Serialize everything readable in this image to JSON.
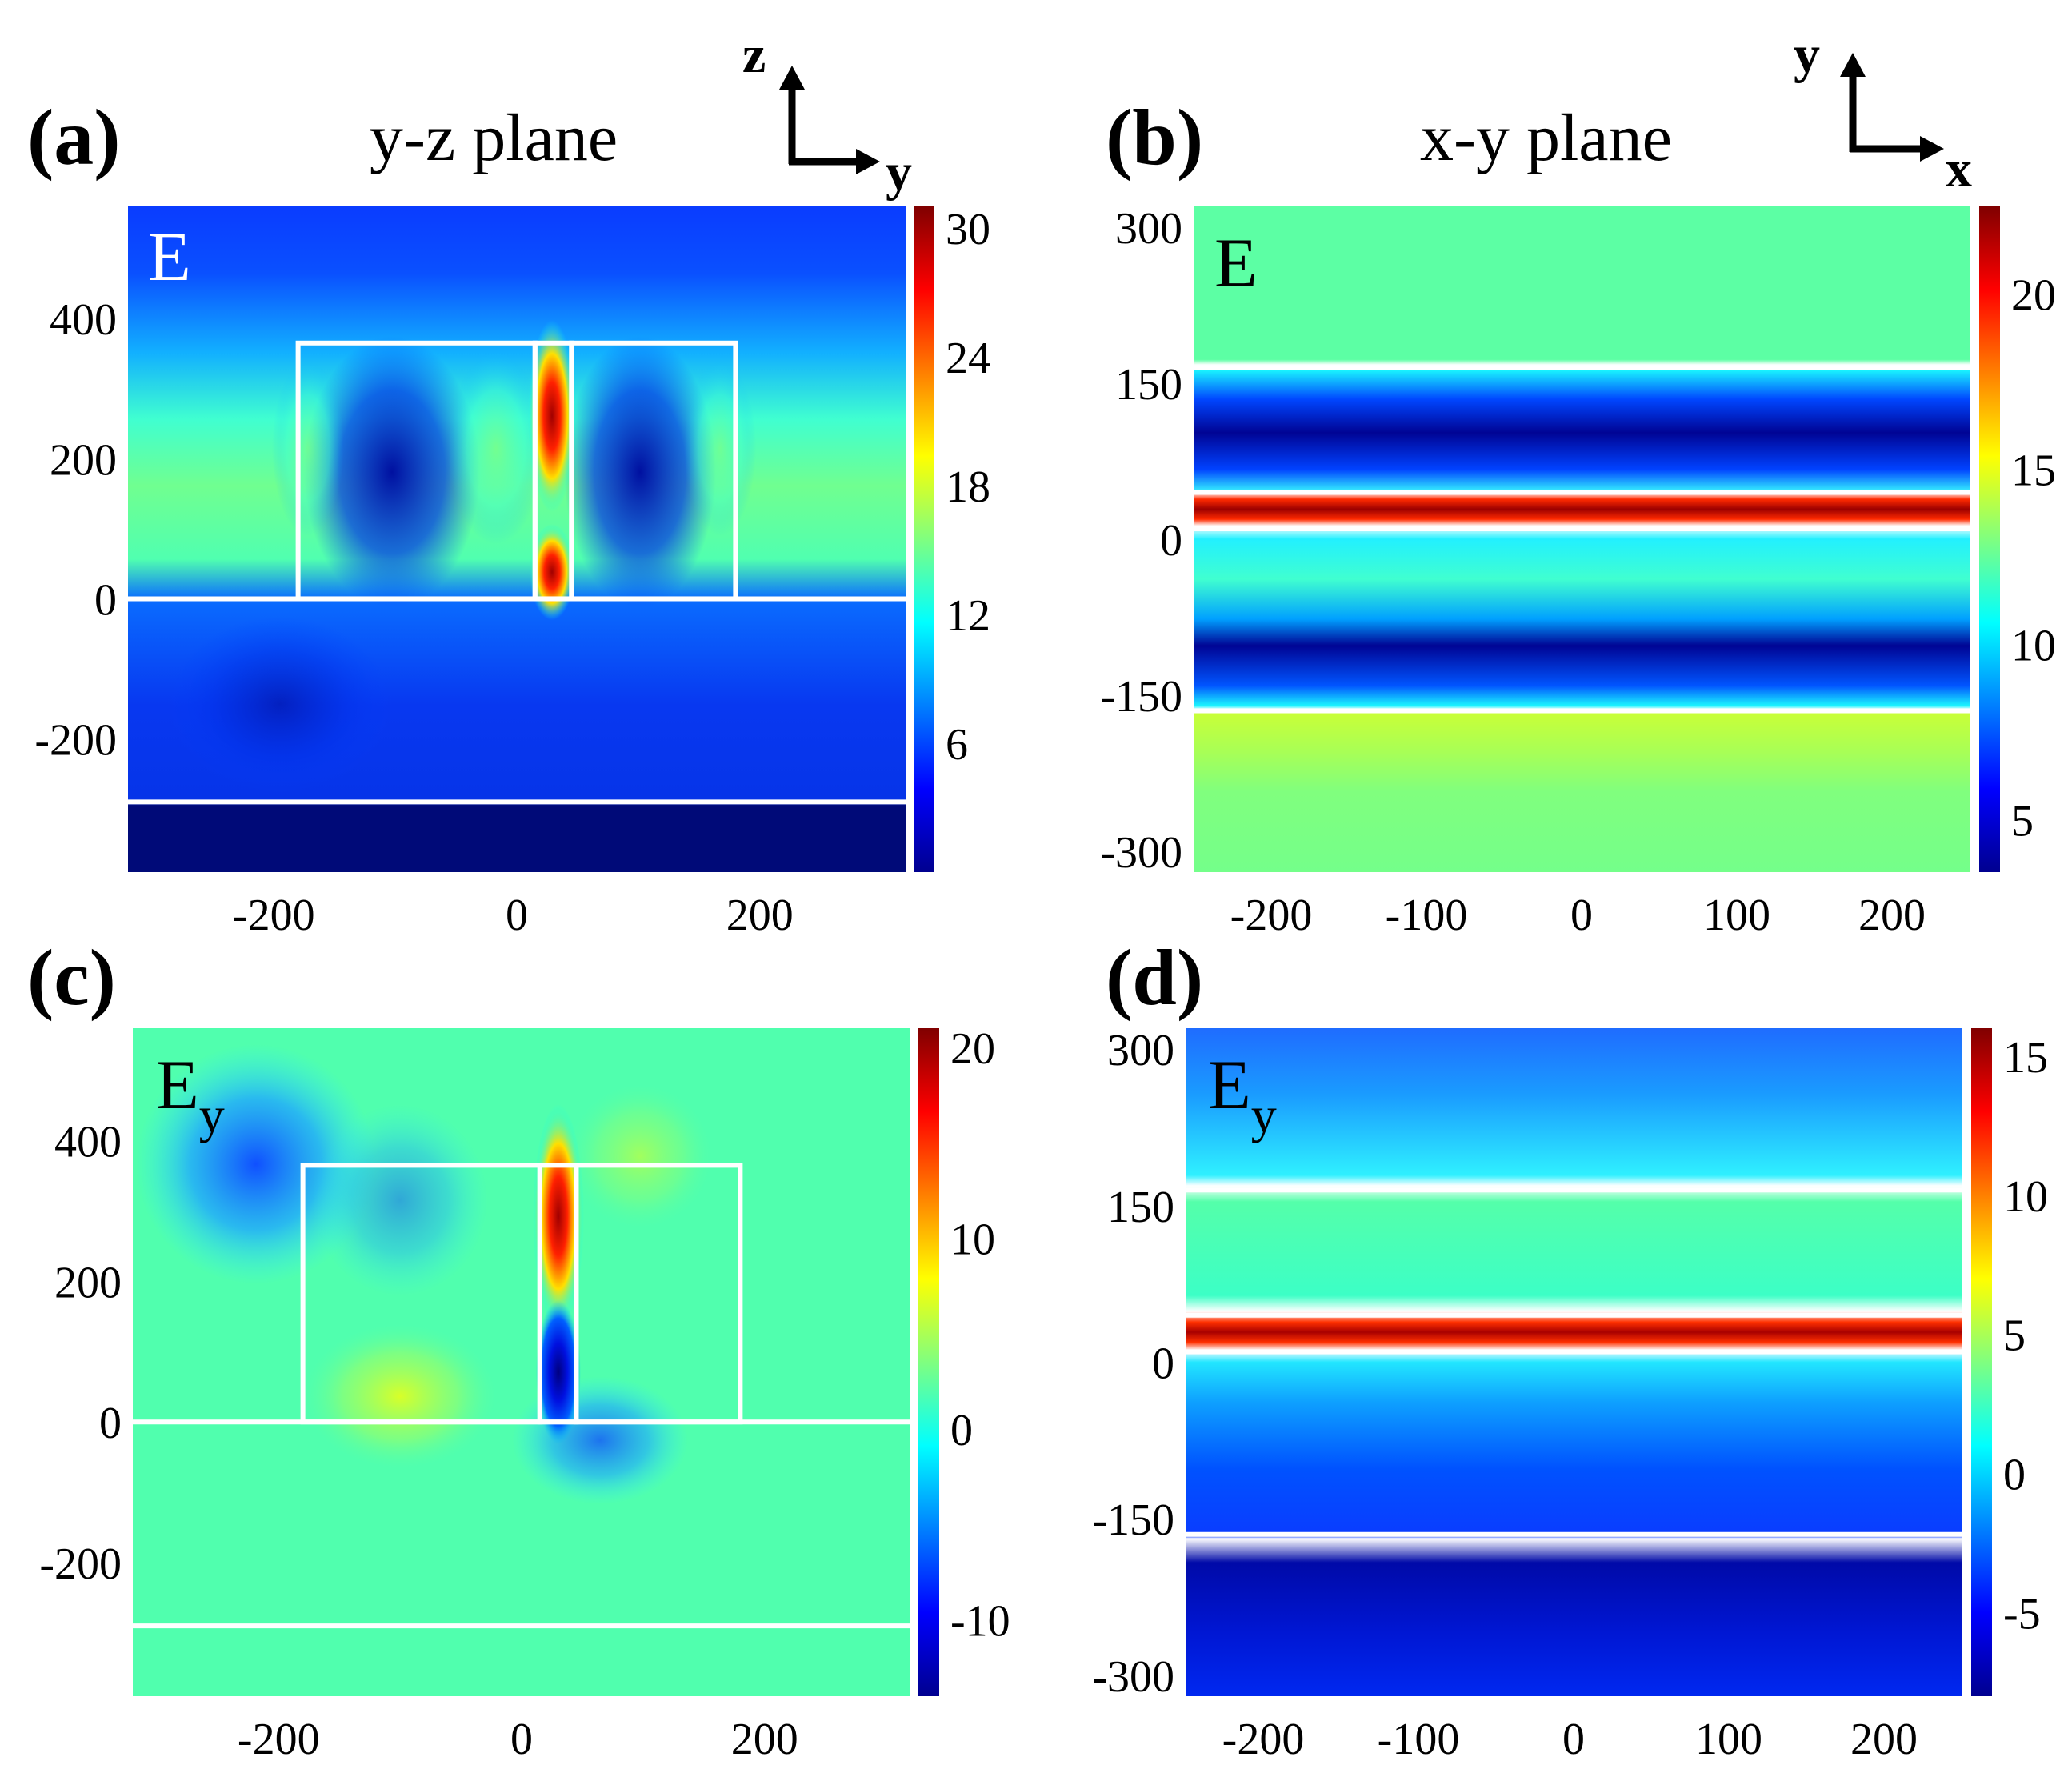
{
  "chart_data": [
    {
      "id": "a",
      "type": "heatmap",
      "panel_label": "(a)",
      "title": "y-z plane",
      "field": "E",
      "field_sub": "",
      "coord_axes": {
        "vertical": "z",
        "horizontal": "y"
      },
      "xlim": [
        -320,
        320
      ],
      "ylim": [
        -390,
        560
      ],
      "xticks": [
        -200,
        0,
        200
      ],
      "yticks": [
        -200,
        0,
        200,
        400
      ],
      "xtick_labels": [
        "-200",
        "0",
        "200"
      ],
      "ytick_labels": [
        "-200",
        "0",
        "200",
        "400"
      ],
      "colorbar": {
        "min": 0,
        "max": 31,
        "colormap": "jet",
        "ticks": [
          6,
          12,
          18,
          24,
          30
        ],
        "tick_labels": [
          "6",
          "12",
          "18",
          "24",
          "30"
        ]
      },
      "structure": {
        "hlines": [
          0,
          -290
        ],
        "rects": [
          [
            -180,
            0,
            15,
            365
          ],
          [
            45,
            0,
            180,
            365
          ],
          [
            15,
            0,
            45,
            365
          ]
        ]
      }
    },
    {
      "id": "b",
      "type": "heatmap",
      "panel_label": "(b)",
      "title": "x-y plane",
      "field": "E",
      "field_sub": "",
      "coord_axes": {
        "vertical": "y",
        "horizontal": "x"
      },
      "xlim": [
        -250,
        250
      ],
      "ylim": [
        -320,
        320
      ],
      "xticks": [
        -200,
        -100,
        0,
        100,
        200
      ],
      "yticks": [
        -300,
        -150,
        0,
        150,
        300
      ],
      "xtick_labels": [
        "-200",
        "-100",
        "0",
        "100",
        "200"
      ],
      "ytick_labels": [
        "-300",
        "-150",
        "0",
        "150",
        "300"
      ],
      "colorbar": {
        "min": 3.5,
        "max": 22.5,
        "colormap": "jet",
        "ticks": [
          5,
          10,
          15,
          20
        ],
        "tick_labels": [
          "5",
          "10",
          "15",
          "20"
        ]
      },
      "structure": {
        "hlines": [
          165,
          45,
          10,
          -165
        ]
      }
    },
    {
      "id": "c",
      "type": "heatmap",
      "panel_label": "(c)",
      "title": "",
      "field": "E",
      "field_sub": "y",
      "coord_axes": null,
      "xlim": [
        -320,
        320
      ],
      "ylim": [
        -390,
        560
      ],
      "xticks": [
        -200,
        0,
        200
      ],
      "yticks": [
        -200,
        0,
        200,
        400
      ],
      "xtick_labels": [
        "-200",
        "0",
        "200"
      ],
      "ytick_labels": [
        "-200",
        "0",
        "200",
        "400"
      ],
      "colorbar": {
        "min": -14,
        "max": 21,
        "colormap": "jet",
        "ticks": [
          -10,
          0,
          10,
          20
        ],
        "tick_labels": [
          "-10",
          "0",
          "10",
          "20"
        ]
      },
      "structure": {
        "hlines": [
          0,
          -290
        ],
        "rects": [
          [
            -180,
            0,
            15,
            365
          ],
          [
            45,
            0,
            180,
            365
          ],
          [
            15,
            0,
            45,
            365
          ]
        ]
      }
    },
    {
      "id": "d",
      "type": "heatmap",
      "panel_label": "(d)",
      "title": "",
      "field": "E",
      "field_sub": "y",
      "coord_axes": null,
      "xlim": [
        -250,
        250
      ],
      "ylim": [
        -320,
        320
      ],
      "xticks": [
        -200,
        -100,
        0,
        100,
        200
      ],
      "yticks": [
        -300,
        -150,
        0,
        150,
        300
      ],
      "xtick_labels": [
        "-200",
        "-100",
        "0",
        "100",
        "200"
      ],
      "ytick_labels": [
        "-300",
        "-150",
        "0",
        "150",
        "300"
      ],
      "colorbar": {
        "min": -8,
        "max": 16,
        "colormap": "jet",
        "ticks": [
          -5,
          0,
          5,
          10,
          15
        ],
        "tick_labels": [
          "-5",
          "0",
          "5",
          "10",
          "15"
        ]
      },
      "structure": {
        "hlines": [
          165,
          45,
          10,
          -165
        ]
      }
    }
  ]
}
